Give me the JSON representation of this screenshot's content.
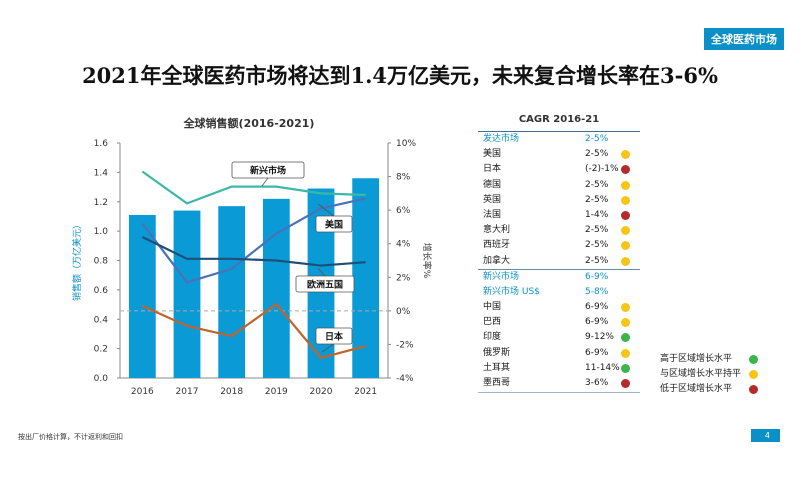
{
  "tag": "全球医药市场",
  "title": "2021年全球医药市场将达到1.4万亿美元，未来复合增长率在3-6%",
  "footnote": "按出厂价格计算，不计返利和回扣",
  "page_number": "4",
  "colors": {
    "bar": "#0a9bd6",
    "emerging": "#3bb8a8",
    "us": "#4a72b8",
    "eu5": "#1f4e79",
    "japan": "#c0642c",
    "green": "#3bb54a",
    "yellow": "#f5c518",
    "red": "#b52a2a"
  },
  "chart_data": {
    "type": "bar+line",
    "title": "全球销售额(2016-2021)",
    "categories": [
      "2016",
      "2017",
      "2018",
      "2019",
      "2020",
      "2021"
    ],
    "ylabel_left": "销售额（万亿美元）",
    "ylabel_right": "增长率%",
    "ylim_left": [
      0,
      1.6
    ],
    "yticks_left": [
      "0.0",
      "0.2",
      "0.4",
      "0.6",
      "0.8",
      "1.0",
      "1.2",
      "1.4",
      "1.6"
    ],
    "ylim_right": [
      -4,
      10
    ],
    "yticks_right": [
      "-4%",
      "-2%",
      "0%",
      "2%",
      "4%",
      "6%",
      "8%",
      "10%"
    ],
    "bars": {
      "name": "全球销售额",
      "values": [
        1.11,
        1.14,
        1.17,
        1.22,
        1.29,
        1.36
      ]
    },
    "series": [
      {
        "name": "新兴市场",
        "values": [
          8.3,
          6.4,
          7.4,
          7.4,
          7.0,
          6.9
        ]
      },
      {
        "name": "美国",
        "values": [
          5.2,
          1.7,
          2.5,
          4.6,
          6.1,
          6.7
        ]
      },
      {
        "name": "欧洲五国",
        "values": [
          4.4,
          3.1,
          3.1,
          3.0,
          2.7,
          2.9
        ]
      },
      {
        "name": "日本",
        "values": [
          0.3,
          -0.9,
          -1.5,
          0.4,
          -2.8,
          -2.1
        ]
      }
    ],
    "reference_line_right": 0
  },
  "cagr": {
    "title": "CAGR 2016-21",
    "rows": [
      {
        "name": "发达市场",
        "value": "2-5%",
        "status": "",
        "blue": true,
        "sep": false
      },
      {
        "name": "美国",
        "value": "2-5%",
        "status": "yellow",
        "blue": false,
        "sep": false
      },
      {
        "name": "日本",
        "value": "(-2)-1%",
        "status": "red",
        "blue": false,
        "sep": false
      },
      {
        "name": "德国",
        "value": "2-5%",
        "status": "yellow",
        "blue": false,
        "sep": false
      },
      {
        "name": "英国",
        "value": "2-5%",
        "status": "yellow",
        "blue": false,
        "sep": false
      },
      {
        "name": "法国",
        "value": "1-4%",
        "status": "red",
        "blue": false,
        "sep": false
      },
      {
        "name": "意大利",
        "value": "2-5%",
        "status": "yellow",
        "blue": false,
        "sep": false
      },
      {
        "name": "西班牙",
        "value": "2-5%",
        "status": "yellow",
        "blue": false,
        "sep": false
      },
      {
        "name": "加拿大",
        "value": "2-5%",
        "status": "yellow",
        "blue": false,
        "sep": false
      },
      {
        "name": "新兴市场",
        "value": "6-9%",
        "status": "",
        "blue": true,
        "sep": true
      },
      {
        "name": "新兴市场 US$",
        "value": "5-8%",
        "status": "",
        "blue": true,
        "sep": false
      },
      {
        "name": "中国",
        "value": "6-9%",
        "status": "yellow",
        "blue": false,
        "sep": false
      },
      {
        "name": "巴西",
        "value": "6-9%",
        "status": "yellow",
        "blue": false,
        "sep": false
      },
      {
        "name": "印度",
        "value": "9-12%",
        "status": "green",
        "blue": false,
        "sep": false
      },
      {
        "name": "俄罗斯",
        "value": "6-9%",
        "status": "yellow",
        "blue": false,
        "sep": false
      },
      {
        "name": "土耳其",
        "value": "11-14%",
        "status": "green",
        "blue": false,
        "sep": false
      },
      {
        "name": "墨西哥",
        "value": "3-6%",
        "status": "red",
        "blue": false,
        "sep": false
      }
    ]
  },
  "legend": [
    {
      "label": "高于区域增长水平",
      "status": "green"
    },
    {
      "label": "与区域增长水平持平",
      "status": "yellow"
    },
    {
      "label": "低于区域增长水平",
      "status": "red"
    }
  ]
}
